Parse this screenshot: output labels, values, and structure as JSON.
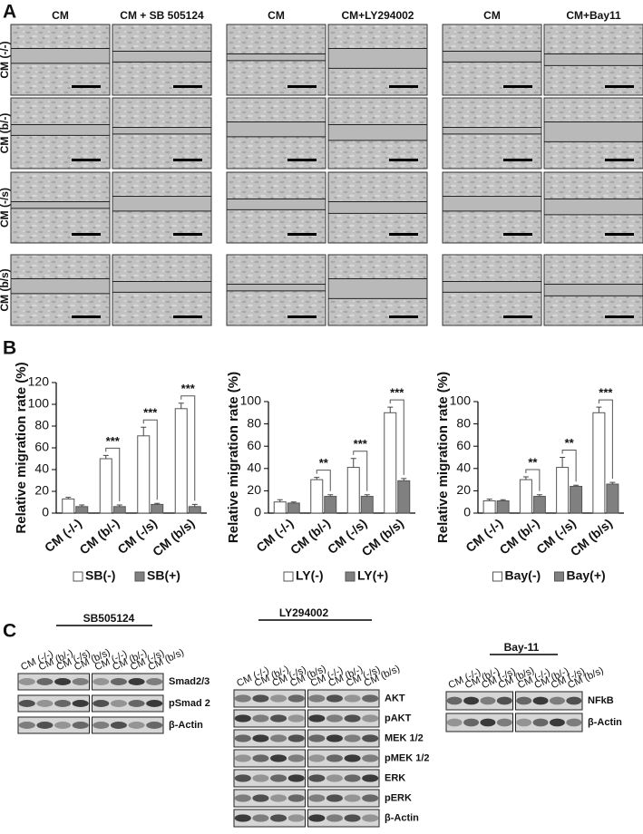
{
  "panel_a": {
    "label": "A",
    "groups": [
      {
        "columns": [
          "CM",
          "CM + SB 505124"
        ]
      },
      {
        "columns": [
          "CM",
          "CM+LY294002"
        ]
      },
      {
        "columns": [
          "CM",
          "CM+Bay11"
        ]
      }
    ],
    "rows": [
      "CM (-/-)",
      "CM (b/-)",
      "CM (-/s)",
      "CM (b/s)"
    ]
  },
  "panel_b_label": "B",
  "chart_data": [
    {
      "type": "bar",
      "y_label": "Relative migration rate (%)",
      "categories": [
        "CM (-/-)",
        "CM (b/-)",
        "CM (-/s)",
        "CM (b/s)"
      ],
      "series": [
        {
          "name": "SB(-)",
          "color": "#ffffff",
          "values": [
            13,
            50,
            71,
            96
          ],
          "errors": [
            1.5,
            3,
            8,
            5
          ]
        },
        {
          "name": "SB(+)",
          "color": "#808080",
          "values": [
            6,
            6,
            8,
            6
          ],
          "errors": [
            1.5,
            1.5,
            1,
            2
          ]
        }
      ],
      "significance": [
        null,
        "***",
        "***",
        "***"
      ],
      "ylim": [
        0,
        120
      ],
      "yticks": [
        0,
        20,
        40,
        60,
        80,
        100,
        120
      ],
      "legend": "bottom"
    },
    {
      "type": "bar",
      "y_label": "Relative migration rate (%)",
      "categories": [
        "CM (-/-)",
        "CM (b/-)",
        "CM (-/s)",
        "CM (b/s)"
      ],
      "series": [
        {
          "name": "LY(-)",
          "color": "#ffffff",
          "values": [
            10,
            30,
            41,
            90
          ],
          "errors": [
            2,
            2,
            8,
            5
          ]
        },
        {
          "name": "LY(+)",
          "color": "#808080",
          "values": [
            9,
            15,
            15,
            29
          ],
          "errors": [
            1,
            1.5,
            1.5,
            2
          ]
        }
      ],
      "significance": [
        null,
        "**",
        "***",
        "***"
      ],
      "ylim": [
        0,
        100
      ],
      "yticks": [
        0,
        20,
        40,
        60,
        80,
        100
      ],
      "legend": "bottom"
    },
    {
      "type": "bar",
      "y_label": "Relative migration rate (%)",
      "categories": [
        "CM (-/-)",
        "CM (b/-)",
        "CM (-/s)",
        "CM (b/s)"
      ],
      "series": [
        {
          "name": "Bay(-)",
          "color": "#ffffff",
          "values": [
            11,
            30,
            41,
            90
          ],
          "errors": [
            1.5,
            2.5,
            9,
            5
          ]
        },
        {
          "name": "Bay(+)",
          "color": "#808080",
          "values": [
            11,
            15,
            24,
            26
          ],
          "errors": [
            1,
            1.5,
            1,
            1.5
          ]
        }
      ],
      "significance": [
        null,
        "**",
        "**",
        "***"
      ],
      "ylim": [
        0,
        100
      ],
      "yticks": [
        0,
        20,
        40,
        60,
        80,
        100
      ],
      "legend": "bottom"
    }
  ],
  "panel_c": {
    "label": "C",
    "blots": [
      {
        "title": "SB505124",
        "lanes": [
          "CM (-/-)",
          "CM (b/-)",
          "CM (-/s)",
          "CM (b/s)",
          "CM (-/-)",
          "CM (b/-)",
          "CM (-/s)",
          "CM (b/s)"
        ],
        "bands": [
          "Smad2/3",
          "pSmad 2",
          "β-Actin"
        ]
      },
      {
        "title": "LY294002",
        "lanes": [
          "CM (-/-)",
          "CM (b/-)",
          "CM (-/s)",
          "CM (b/s)",
          "CM (-/-)",
          "CM (b/-)",
          "CM (-/s)",
          "CM (b/s)"
        ],
        "bands": [
          "AKT",
          "pAKT",
          "MEK 1/2",
          "pMEK 1/2",
          "ERK",
          "pERK",
          "β-Actin"
        ]
      },
      {
        "title": "Bay-11",
        "lanes": [
          "CM (-/-)",
          "CM (b/-)",
          "CM (-/s)",
          "CM (b/s)",
          "CM (-/-)",
          "CM (b/-)",
          "CM (-/s)",
          "CM (b/s)"
        ],
        "bands": [
          "NFkB",
          "β-Actin"
        ]
      }
    ]
  }
}
